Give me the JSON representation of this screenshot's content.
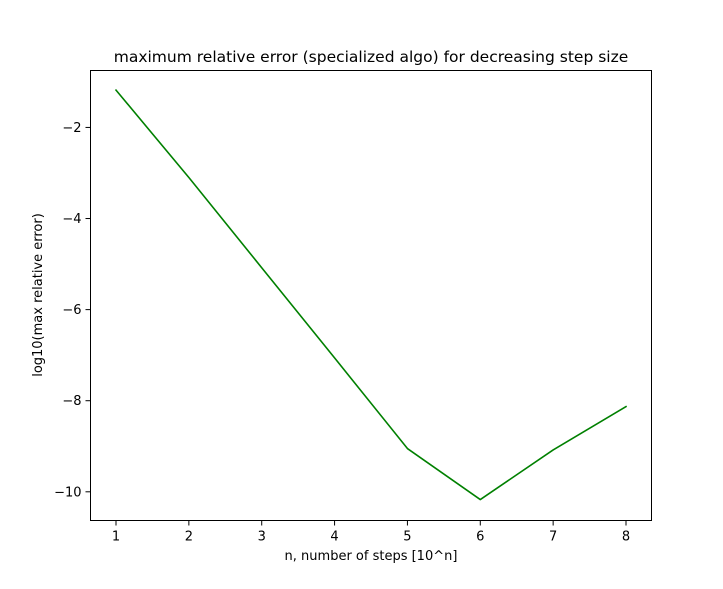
{
  "chart_data": {
    "type": "line",
    "title": "maximum relative error (specialized algo) for decreasing step size",
    "xlabel": "n, number of steps [10^n]",
    "ylabel": "log10(max relative error)",
    "x": [
      1,
      2,
      3,
      4,
      5,
      6,
      7,
      8
    ],
    "series": [
      {
        "values": [
          -1.18,
          -3.1,
          -5.08,
          -7.06,
          -9.05,
          -10.17,
          -9.08,
          -8.13
        ],
        "color": "#008000"
      }
    ],
    "xlim": [
      0.65,
      8.35
    ],
    "ylim": [
      -10.63,
      -0.75
    ],
    "xticks": [
      1,
      2,
      3,
      4,
      5,
      6,
      7,
      8
    ],
    "xtick_labels": [
      "1",
      "2",
      "3",
      "4",
      "5",
      "6",
      "7",
      "8"
    ],
    "yticks": [
      -2,
      -4,
      -6,
      -8,
      -10
    ],
    "ytick_labels": [
      "−2",
      "−4",
      "−6",
      "−8",
      "−10"
    ],
    "grid": false,
    "legend": "none"
  }
}
